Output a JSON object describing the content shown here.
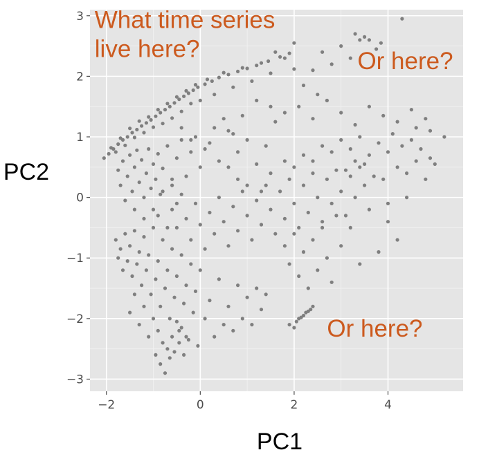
{
  "chart_data": {
    "type": "scatter",
    "xlabel": "PC1",
    "ylabel": "PC2",
    "xlim": [
      -2.35,
      5.6
    ],
    "ylim": [
      -3.2,
      3.1
    ],
    "x_ticks": [
      {
        "value": -2,
        "label": "−2"
      },
      {
        "value": 0,
        "label": "0"
      },
      {
        "value": 2,
        "label": "2"
      },
      {
        "value": 4,
        "label": "4"
      }
    ],
    "y_ticks": [
      {
        "value": 3,
        "label": "3"
      },
      {
        "value": 2,
        "label": "2"
      },
      {
        "value": 1,
        "label": "1"
      },
      {
        "value": 0,
        "label": "0"
      },
      {
        "value": -1,
        "label": "−1"
      },
      {
        "value": -2,
        "label": "−2"
      },
      {
        "value": -3,
        "label": "−3"
      }
    ],
    "grid": true,
    "background": "#e5e5e5",
    "point_color": "#7f7f7f",
    "annotation_color": "#cc5a1e",
    "annotations": [
      {
        "lines": [
          "What time series",
          "live here?"
        ],
        "x": -2.25,
        "y": 2.8
      },
      {
        "lines": [
          "Or here?"
        ],
        "x": 3.35,
        "y": 2.12
      },
      {
        "lines": [
          "Or here?"
        ],
        "x": 2.7,
        "y": -2.3
      }
    ],
    "points": [
      [
        -2.05,
        0.65
      ],
      [
        -1.95,
        0.72
      ],
      [
        -1.85,
        0.8
      ],
      [
        -1.75,
        0.88
      ],
      [
        -1.65,
        0.95
      ],
      [
        -1.55,
        1.0
      ],
      [
        -1.45,
        1.07
      ],
      [
        -1.35,
        1.12
      ],
      [
        -1.25,
        1.18
      ],
      [
        -1.15,
        1.23
      ],
      [
        -1.05,
        1.28
      ],
      [
        -0.95,
        1.34
      ],
      [
        -0.85,
        1.4
      ],
      [
        -0.75,
        1.45
      ],
      [
        -0.65,
        1.5
      ],
      [
        -0.55,
        1.56
      ],
      [
        -0.45,
        1.62
      ],
      [
        -0.35,
        1.67
      ],
      [
        -0.25,
        1.72
      ],
      [
        -0.15,
        1.77
      ],
      [
        -0.05,
        1.82
      ],
      [
        0.1,
        1.87
      ],
      [
        0.25,
        1.92
      ],
      [
        0.4,
        1.98
      ],
      [
        0.6,
        2.03
      ],
      [
        0.8,
        2.08
      ],
      [
        1.0,
        2.13
      ],
      [
        1.2,
        2.18
      ],
      [
        1.45,
        2.25
      ],
      [
        1.7,
        2.32
      ],
      [
        1.9,
        2.38
      ],
      [
        -1.9,
        0.82
      ],
      [
        -1.8,
        0.75
      ],
      [
        -1.7,
        0.98
      ],
      [
        -1.6,
        0.86
      ],
      [
        -1.5,
        1.14
      ],
      [
        -1.4,
        0.99
      ],
      [
        -1.3,
        1.26
      ],
      [
        -1.2,
        1.07
      ],
      [
        -1.1,
        1.33
      ],
      [
        -1.0,
        1.16
      ],
      [
        -0.9,
        1.45
      ],
      [
        -0.8,
        1.22
      ],
      [
        -0.7,
        1.55
      ],
      [
        -0.6,
        1.31
      ],
      [
        -0.5,
        1.66
      ],
      [
        -0.4,
        1.42
      ],
      [
        -0.3,
        1.76
      ],
      [
        -0.2,
        1.55
      ],
      [
        -0.1,
        1.86
      ],
      [
        0.0,
        1.6
      ],
      [
        0.15,
        1.95
      ],
      [
        0.3,
        1.7
      ],
      [
        0.5,
        2.06
      ],
      [
        0.7,
        1.82
      ],
      [
        0.9,
        2.14
      ],
      [
        1.1,
        1.92
      ],
      [
        1.3,
        2.22
      ],
      [
        1.5,
        2.05
      ],
      [
        1.8,
        2.3
      ],
      [
        2.0,
        2.12
      ],
      [
        -1.75,
        0.45
      ],
      [
        -1.7,
        0.2
      ],
      [
        -1.65,
        0.6
      ],
      [
        -1.6,
        -0.05
      ],
      [
        -1.55,
        0.35
      ],
      [
        -1.5,
        0.7
      ],
      [
        -1.45,
        0.1
      ],
      [
        -1.4,
        0.5
      ],
      [
        -1.35,
        0.78
      ],
      [
        -1.3,
        0.25
      ],
      [
        -1.25,
        0.62
      ],
      [
        -1.2,
        0.0
      ],
      [
        -1.15,
        0.4
      ],
      [
        -1.1,
        0.8
      ],
      [
        -1.05,
        0.15
      ],
      [
        -1.0,
        0.55
      ],
      [
        -0.95,
        0.3
      ],
      [
        -0.9,
        0.72
      ],
      [
        -0.85,
        0.05
      ],
      [
        -0.8,
        0.48
      ],
      [
        -0.7,
        0.85
      ],
      [
        -0.6,
        0.2
      ],
      [
        -0.5,
        0.65
      ],
      [
        -0.4,
        0.95
      ],
      [
        -0.3,
        0.35
      ],
      [
        -0.2,
        0.75
      ],
      [
        -0.1,
        1.0
      ],
      [
        0.0,
        0.5
      ],
      [
        0.2,
        0.9
      ],
      [
        0.4,
        0.6
      ],
      [
        0.6,
        1.1
      ],
      [
        0.8,
        0.75
      ],
      [
        1.0,
        0.95
      ],
      [
        1.2,
        0.55
      ],
      [
        1.4,
        0.85
      ],
      [
        1.6,
        1.25
      ],
      [
        1.8,
        0.6
      ],
      [
        -1.8,
        -0.7
      ],
      [
        -1.75,
        -1.0
      ],
      [
        -1.7,
        -0.85
      ],
      [
        -1.65,
        -1.2
      ],
      [
        -1.6,
        -0.6
      ],
      [
        -1.55,
        -1.05
      ],
      [
        -1.5,
        -0.8
      ],
      [
        -1.45,
        -1.3
      ],
      [
        -1.4,
        -0.55
      ],
      [
        -1.35,
        -1.1
      ],
      [
        -1.3,
        -0.9
      ],
      [
        -1.25,
        -1.45
      ],
      [
        -1.2,
        -0.65
      ],
      [
        -1.15,
        -1.2
      ],
      [
        -1.1,
        -0.95
      ],
      [
        -1.05,
        -1.6
      ],
      [
        -1.0,
        -0.5
      ],
      [
        -0.95,
        -1.35
      ],
      [
        -0.9,
        -1.05
      ],
      [
        -0.85,
        -1.8
      ],
      [
        -0.8,
        -0.7
      ],
      [
        -0.75,
        -1.5
      ],
      [
        -0.7,
        -1.2
      ],
      [
        -0.65,
        -2.0
      ],
      [
        -0.6,
        -0.85
      ],
      [
        -0.55,
        -1.65
      ],
      [
        -0.5,
        -1.3
      ],
      [
        -0.45,
        -2.2
      ],
      [
        -0.4,
        -0.95
      ],
      [
        -0.35,
        -1.75
      ],
      [
        -0.3,
        -1.45
      ],
      [
        -0.25,
        -2.35
      ],
      [
        -0.2,
        -1.1
      ],
      [
        -0.15,
        -1.9
      ],
      [
        -0.1,
        -1.55
      ],
      [
        -0.05,
        -2.45
      ],
      [
        0.0,
        -1.2
      ],
      [
        0.1,
        -2.0
      ],
      [
        0.2,
        -1.7
      ],
      [
        0.3,
        -2.3
      ],
      [
        0.4,
        -1.35
      ],
      [
        0.5,
        -2.1
      ],
      [
        0.6,
        -1.8
      ],
      [
        0.7,
        -2.2
      ],
      [
        0.8,
        -1.45
      ],
      [
        0.9,
        -2.0
      ],
      [
        1.0,
        -1.65
      ],
      [
        1.1,
        -2.1
      ],
      [
        1.2,
        -1.5
      ],
      [
        1.3,
        -1.85
      ],
      [
        1.4,
        -1.6
      ],
      [
        -1.5,
        -1.9
      ],
      [
        -1.4,
        -1.6
      ],
      [
        -1.3,
        -2.1
      ],
      [
        -1.2,
        -1.8
      ],
      [
        -1.1,
        -2.3
      ],
      [
        -1.0,
        -2.0
      ],
      [
        -0.95,
        -2.6
      ],
      [
        -0.9,
        -2.2
      ],
      [
        -0.85,
        -2.75
      ],
      [
        -0.8,
        -2.4
      ],
      [
        -0.75,
        -2.9
      ],
      [
        -0.7,
        -2.5
      ],
      [
        -0.65,
        -2.65
      ],
      [
        -0.6,
        -2.3
      ],
      [
        -0.55,
        -2.55
      ],
      [
        -0.5,
        -2.05
      ],
      [
        -0.45,
        -2.4
      ],
      [
        -0.4,
        -2.15
      ],
      [
        -0.35,
        -2.6
      ],
      [
        -0.3,
        -2.3
      ],
      [
        -0.6,
        -0.2
      ],
      [
        -0.5,
        -0.5
      ],
      [
        -0.4,
        0.05
      ],
      [
        -0.3,
        -0.35
      ],
      [
        -0.2,
        -0.7
      ],
      [
        -0.1,
        -0.1
      ],
      [
        0.0,
        -0.45
      ],
      [
        0.1,
        -0.85
      ],
      [
        0.2,
        -0.25
      ],
      [
        0.3,
        -0.6
      ],
      [
        0.4,
        0.0
      ],
      [
        0.5,
        -0.4
      ],
      [
        0.6,
        -0.8
      ],
      [
        0.7,
        -0.15
      ],
      [
        0.8,
        -0.55
      ],
      [
        0.9,
        0.1
      ],
      [
        1.0,
        -0.3
      ],
      [
        1.1,
        -0.7
      ],
      [
        1.2,
        -0.05
      ],
      [
        1.3,
        -0.45
      ],
      [
        1.4,
        0.2
      ],
      [
        1.5,
        -0.2
      ],
      [
        1.6,
        -0.6
      ],
      [
        1.7,
        0.1
      ],
      [
        1.8,
        -0.35
      ],
      [
        1.9,
        0.3
      ],
      [
        2.0,
        -0.1
      ],
      [
        2.1,
        -0.5
      ],
      [
        2.2,
        0.2
      ],
      [
        2.3,
        -0.25
      ],
      [
        2.4,
        0.4
      ],
      [
        2.5,
        0.0
      ],
      [
        2.6,
        -0.4
      ],
      [
        2.7,
        0.3
      ],
      [
        2.8,
        -0.1
      ],
      [
        2.9,
        0.45
      ],
      [
        3.0,
        0.1
      ],
      [
        3.1,
        -0.3
      ],
      [
        3.2,
        0.35
      ],
      [
        3.3,
        0.0
      ],
      [
        3.4,
        0.5
      ],
      [
        3.5,
        0.2
      ],
      [
        1.8,
        -0.8
      ],
      [
        1.9,
        -1.1
      ],
      [
        2.0,
        -0.6
      ],
      [
        2.1,
        -1.3
      ],
      [
        2.2,
        -0.9
      ],
      [
        2.3,
        -1.5
      ],
      [
        2.4,
        -0.7
      ],
      [
        2.5,
        -1.2
      ],
      [
        2.6,
        -0.5
      ],
      [
        2.7,
        -1.0
      ],
      [
        2.8,
        -1.4
      ],
      [
        2.9,
        -0.3
      ],
      [
        3.0,
        -0.8
      ],
      [
        3.2,
        -0.5
      ],
      [
        3.4,
        -1.1
      ],
      [
        3.6,
        -0.2
      ],
      [
        3.8,
        -0.9
      ],
      [
        4.0,
        -0.4
      ],
      [
        4.2,
        -0.7
      ],
      [
        4.4,
        0.0
      ],
      [
        1.9,
        -2.1
      ],
      [
        2.0,
        -2.15
      ],
      [
        2.05,
        -2.05
      ],
      [
        2.1,
        -2.0
      ],
      [
        2.15,
        -1.98
      ],
      [
        2.2,
        -1.95
      ],
      [
        2.25,
        -1.9
      ],
      [
        2.3,
        -1.88
      ],
      [
        2.35,
        -1.85
      ],
      [
        2.4,
        -1.8
      ],
      [
        2.0,
        0.5
      ],
      [
        2.2,
        0.7
      ],
      [
        2.4,
        0.6
      ],
      [
        2.6,
        0.85
      ],
      [
        2.8,
        0.75
      ],
      [
        3.0,
        0.95
      ],
      [
        3.2,
        0.8
      ],
      [
        3.4,
        1.0
      ],
      [
        3.6,
        0.7
      ],
      [
        3.8,
        0.9
      ],
      [
        4.0,
        0.75
      ],
      [
        4.1,
        1.05
      ],
      [
        4.2,
        0.5
      ],
      [
        4.3,
        0.85
      ],
      [
        4.4,
        0.4
      ],
      [
        4.5,
        0.95
      ],
      [
        4.6,
        0.6
      ],
      [
        4.7,
        0.8
      ],
      [
        4.8,
        0.3
      ],
      [
        4.9,
        0.65
      ],
      [
        5.0,
        0.55
      ],
      [
        4.6,
        1.15
      ],
      [
        4.9,
        1.1
      ],
      [
        5.2,
        1.0
      ],
      [
        3.9,
        0.3
      ],
      [
        4.0,
        -0.1
      ],
      [
        3.5,
        0.55
      ],
      [
        3.7,
        0.35
      ],
      [
        3.3,
        0.6
      ],
      [
        3.1,
        0.45
      ],
      [
        1.2,
        1.6
      ],
      [
        1.5,
        1.5
      ],
      [
        1.8,
        1.4
      ],
      [
        2.1,
        1.5
      ],
      [
        2.4,
        1.3
      ],
      [
        2.7,
        1.6
      ],
      [
        3.0,
        1.4
      ],
      [
        3.3,
        1.2
      ],
      [
        3.6,
        1.5
      ],
      [
        3.9,
        1.35
      ],
      [
        4.2,
        1.25
      ],
      [
        4.5,
        1.45
      ],
      [
        4.8,
        1.3
      ],
      [
        2.5,
        1.7
      ],
      [
        2.2,
        1.85
      ],
      [
        2.6,
        2.4
      ],
      [
        2.8,
        2.2
      ],
      [
        3.0,
        2.5
      ],
      [
        3.2,
        2.3
      ],
      [
        3.3,
        2.7
      ],
      [
        3.4,
        2.6
      ],
      [
        3.5,
        2.65
      ],
      [
        3.6,
        2.6
      ],
      [
        3.75,
        2.45
      ],
      [
        3.85,
        2.55
      ],
      [
        4.3,
        2.95
      ],
      [
        2.4,
        2.1
      ],
      [
        2.0,
        2.55
      ],
      [
        1.6,
        2.4
      ],
      [
        -0.2,
        0.95
      ],
      [
        0.1,
        0.8
      ],
      [
        0.3,
        1.15
      ],
      [
        0.5,
        1.3
      ],
      [
        0.7,
        1.05
      ],
      [
        0.9,
        1.35
      ],
      [
        -0.4,
        1.15
      ],
      [
        0.6,
        0.5
      ],
      [
        0.8,
        0.3
      ],
      [
        1.0,
        0.2
      ],
      [
        1.3,
        0.1
      ],
      [
        1.5,
        0.4
      ],
      [
        -0.8,
        0.1
      ],
      [
        -0.6,
        0.3
      ],
      [
        -0.9,
        -0.3
      ],
      [
        -0.7,
        -0.5
      ],
      [
        -0.5,
        -0.1
      ],
      [
        -1.0,
        -0.2
      ],
      [
        -1.2,
        -0.35
      ],
      [
        -1.4,
        -0.2
      ]
    ]
  }
}
